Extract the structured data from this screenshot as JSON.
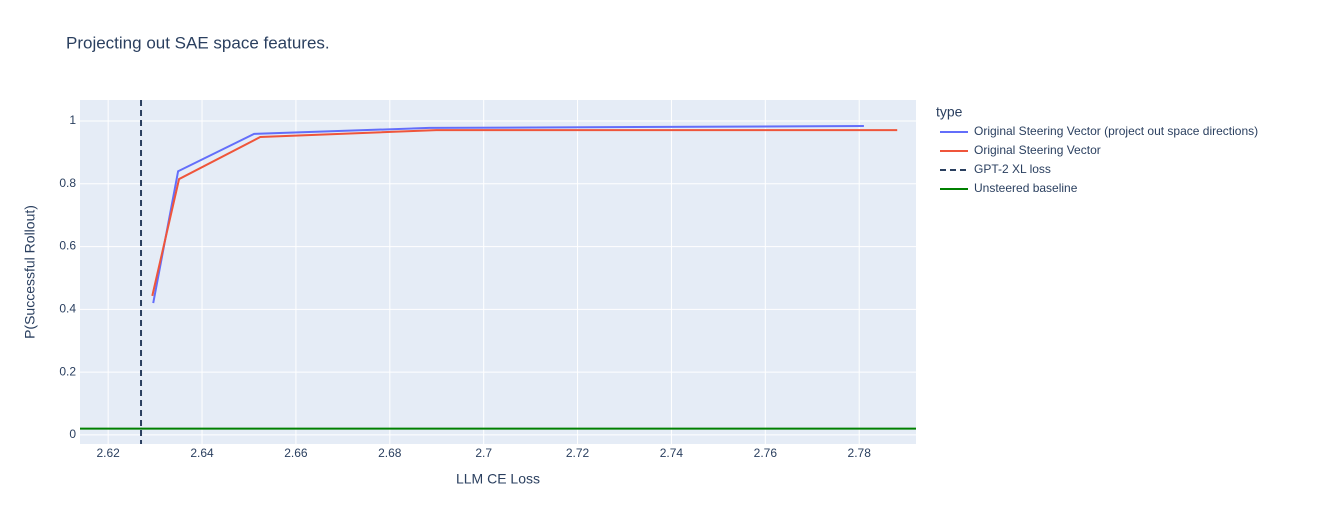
{
  "chart_data": {
    "type": "line",
    "title": "Projecting out SAE space features.",
    "xlabel": "LLM CE Loss",
    "ylabel": "P(Successful Rollout)",
    "legend_title": "type",
    "series": [
      {
        "name": "Original Steering Vector (project out space directions)",
        "color": "#636efa",
        "x": [
          2.6296,
          2.6349,
          2.6511,
          2.6884,
          2.781
        ],
        "values": [
          0.42,
          0.84,
          0.959,
          0.978,
          0.984
        ]
      },
      {
        "name": "Original Steering Vector",
        "color": "#ef553b",
        "x": [
          2.6294,
          2.6351,
          2.6524,
          2.6899,
          2.7881
        ],
        "values": [
          0.443,
          0.815,
          0.949,
          0.971,
          0.971
        ]
      }
    ],
    "vlines": [
      {
        "name": "GPT-2 XL loss",
        "color": "#2a3f5f",
        "dash": true,
        "x": 2.627
      }
    ],
    "hlines": [
      {
        "name": "Unsteered baseline",
        "color": "#008000",
        "y": 0.02
      }
    ],
    "xlim": [
      2.614,
      2.7921
    ],
    "ylim": [
      -0.029,
      1.067
    ],
    "xticks": [
      2.62,
      2.64,
      2.66,
      2.68,
      2.7,
      2.72,
      2.74,
      2.76,
      2.78
    ],
    "yticks": [
      0,
      0.2,
      0.4,
      0.6,
      0.8,
      1
    ],
    "grid": true,
    "legend_position": "right"
  }
}
